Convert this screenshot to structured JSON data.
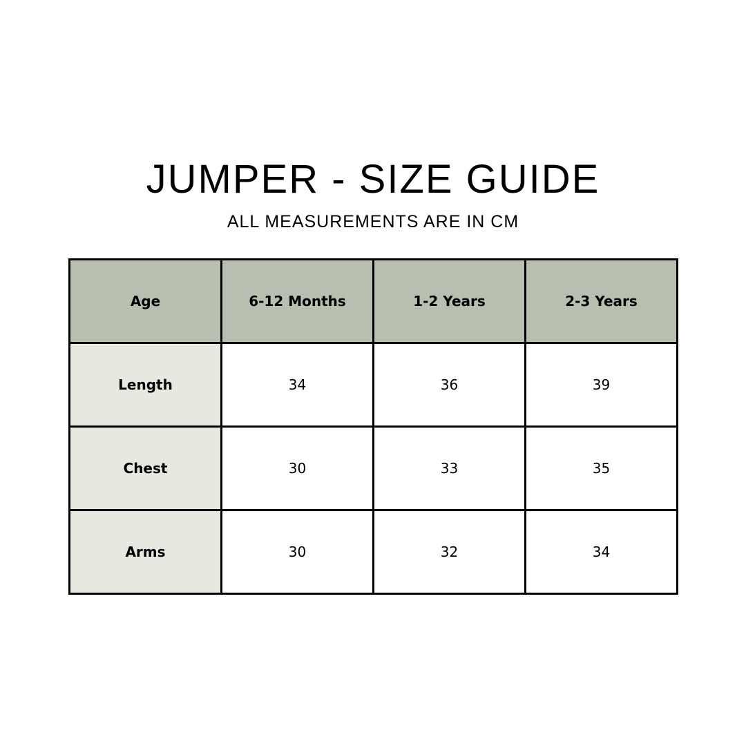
{
  "title": "JUMPER - SIZE GUIDE",
  "subtitle": "ALL MEASUREMENTS ARE IN CM",
  "colors": {
    "header_bg": "#b8bfb1",
    "row_header_bg": "#e6e9e0",
    "border": "#000000"
  },
  "table": {
    "headers": [
      "Age",
      "6-12 Months",
      "1-2 Years",
      "2-3 Years"
    ],
    "rows": [
      {
        "label": "Length",
        "values": [
          "34",
          "36",
          "39"
        ]
      },
      {
        "label": "Chest",
        "values": [
          "30",
          "33",
          "35"
        ]
      },
      {
        "label": "Arms",
        "values": [
          "30",
          "32",
          "34"
        ]
      }
    ]
  }
}
